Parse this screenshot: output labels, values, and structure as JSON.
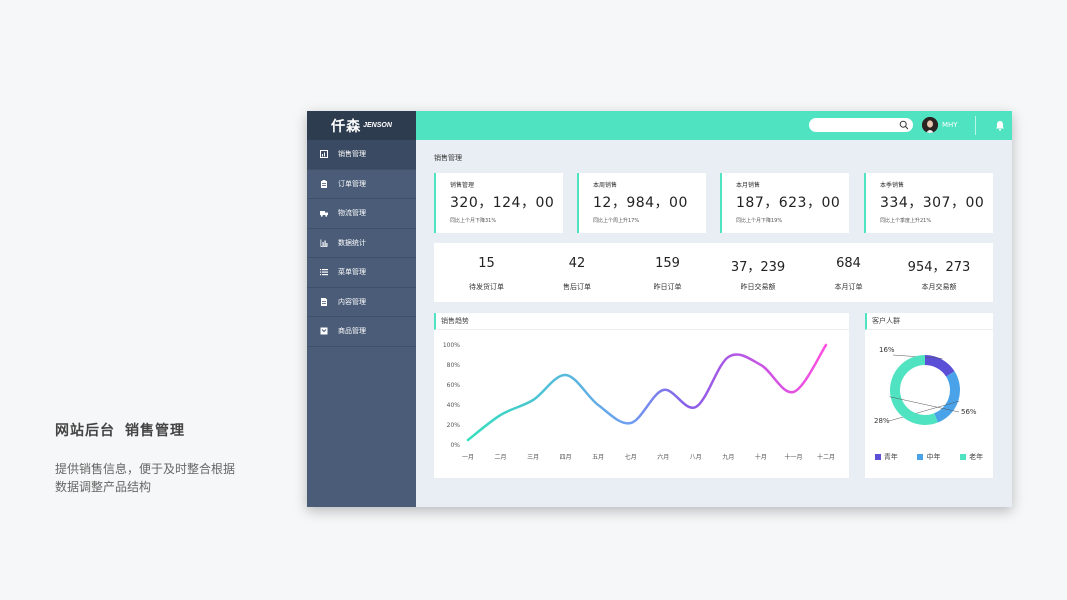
{
  "caption": {
    "title_part1": "网站后台",
    "title_part2": "销售管理",
    "desc_line1": "提供销售信息，便于及时整合根据",
    "desc_line2": "数据调整产品结构"
  },
  "logo": {
    "cn": "仟森",
    "en": "JENSON"
  },
  "sidebar": {
    "items": [
      {
        "label": "销售管理",
        "icon": "chart-icon",
        "active": true
      },
      {
        "label": "订单管理",
        "icon": "clipboard-icon",
        "active": false
      },
      {
        "label": "物流管理",
        "icon": "truck-icon",
        "active": false
      },
      {
        "label": "数据统计",
        "icon": "bar-chart-icon",
        "active": false
      },
      {
        "label": "菜单管理",
        "icon": "list-icon",
        "active": false
      },
      {
        "label": "内容管理",
        "icon": "document-icon",
        "active": false
      },
      {
        "label": "商品管理",
        "icon": "product-icon",
        "active": false
      }
    ]
  },
  "topbar": {
    "user_name": "MHY",
    "search_placeholder": ""
  },
  "page": {
    "title": "销售管理"
  },
  "stats": [
    {
      "label": "销售管理",
      "value": "320，124，00",
      "note": "同比上个月下降31%"
    },
    {
      "label": "本周销售",
      "value": "12，984，00",
      "note": "同比上个周上升17%"
    },
    {
      "label": "本月销售",
      "value": "187，623，00",
      "note": "同比上个月下降19%"
    },
    {
      "label": "本季销售",
      "value": "334，307，00",
      "note": "同比上个季度上升21%"
    }
  ],
  "metrics": [
    {
      "value": "15",
      "label": "待发货订单"
    },
    {
      "value": "42",
      "label": "售后订单"
    },
    {
      "value": "159",
      "label": "昨日订单"
    },
    {
      "value": "37，239",
      "label": "昨日交易额"
    },
    {
      "value": "684",
      "label": "本月订单"
    },
    {
      "value": "954，273",
      "label": "本月交易额"
    }
  ],
  "colors": {
    "accent": "#50e3c2",
    "sidebar": "#4a5c78",
    "line_start": "#34e0bd",
    "line_mid": "#7b61e8",
    "line_end": "#ff4fe0",
    "donut_young": "#5b4fd8",
    "donut_middle": "#4aa3e8",
    "donut_old": "#50e3c2"
  },
  "chart_data": [
    {
      "type": "line",
      "title": "销售趋势",
      "categories": [
        "一月",
        "二月",
        "三月",
        "四月",
        "五月",
        "七月",
        "六月",
        "八月",
        "九月",
        "十月",
        "十一月",
        "十二月"
      ],
      "y_ticks": [
        "100%",
        "80%",
        "60%",
        "40%",
        "20%",
        "0%"
      ],
      "ylim": [
        0,
        100
      ],
      "series": [
        {
          "values": [
            5,
            30,
            45,
            70,
            40,
            22,
            55,
            38,
            88,
            80,
            53,
            100
          ]
        }
      ],
      "grid": false
    },
    {
      "type": "pie",
      "title": "客户人群",
      "donut": true,
      "slices": [
        {
          "name": "青年",
          "value": 16,
          "label": "16%"
        },
        {
          "name": "中年",
          "value": 28,
          "label": "28%"
        },
        {
          "name": "老年",
          "value": 56,
          "label": "56%"
        }
      ],
      "legend": "bottom"
    }
  ]
}
